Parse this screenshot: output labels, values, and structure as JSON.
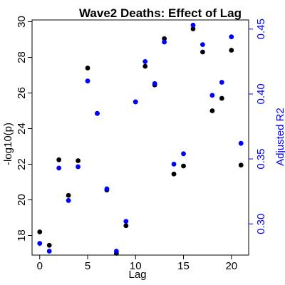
{
  "chart_data": {
    "type": "scatter",
    "title": "Wave2 Deaths: Effect of Lag",
    "xlabel": "Lag",
    "ylabel": "-log10(p)",
    "y2label": "Adjusted R2",
    "xlim": [
      -0.8,
      21.8
    ],
    "ylim": [
      16.9,
      30.1
    ],
    "y2lim": [
      0.276,
      0.457
    ],
    "x_ticks": [
      0,
      5,
      10,
      15,
      20
    ],
    "y_ticks": [
      18,
      20,
      22,
      24,
      26,
      28,
      30
    ],
    "y2_ticks": [
      0.3,
      0.35,
      0.4,
      0.45
    ],
    "y2_tick_labels": [
      "0.30",
      "0.35",
      "0.40",
      "0.45"
    ],
    "grid": false,
    "legend": "none",
    "series": [
      {
        "axis": "left",
        "color": "#000000",
        "x": [
          0,
          1,
          2,
          3,
          4,
          5,
          6,
          7,
          8,
          9,
          10,
          11,
          12,
          13,
          14,
          15,
          16,
          17,
          18,
          19,
          20,
          21
        ],
        "y": [
          18.2,
          17.45,
          22.25,
          20.25,
          22.2,
          27.4,
          24.85,
          20.55,
          17.0,
          18.55,
          25.5,
          27.5,
          26.45,
          29.05,
          21.45,
          21.9,
          29.6,
          28.3,
          25.0,
          25.7,
          28.4,
          21.95
        ]
      },
      {
        "axis": "right",
        "color": "#0000ff",
        "x": [
          0,
          1,
          2,
          3,
          4,
          5,
          6,
          7,
          8,
          9,
          10,
          11,
          12,
          13,
          14,
          15,
          16,
          17,
          18,
          19,
          20,
          21
        ],
        "y": [
          0.285,
          0.279,
          0.343,
          0.318,
          0.344,
          0.41,
          0.385,
          0.327,
          0.279,
          0.302,
          0.394,
          0.425,
          0.408,
          0.44,
          0.346,
          0.354,
          0.453,
          0.438,
          0.399,
          0.409,
          0.444,
          0.362
        ]
      }
    ]
  }
}
